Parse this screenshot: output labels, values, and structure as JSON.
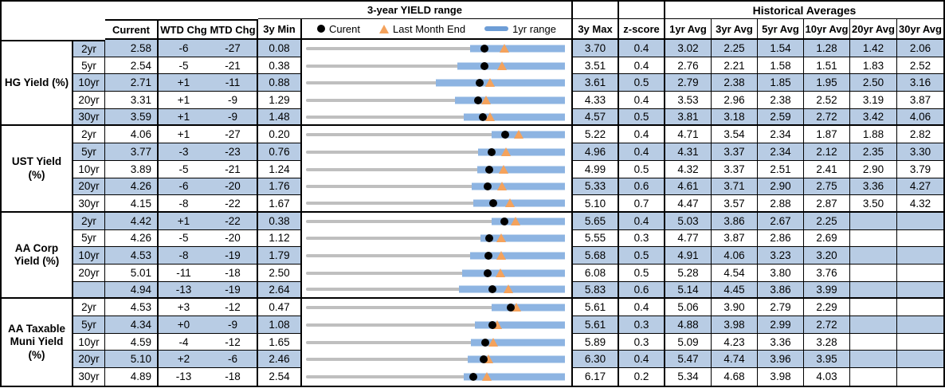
{
  "colors": {
    "row_stripe": "#B8CCE4",
    "range_bar": "#8DB4E2",
    "three_year_line": "#BFBFBF",
    "last_month_marker": "#F4A25C",
    "current_marker": "#000000",
    "legend_bar_swatch": "#6D9DD6",
    "border": "#000000"
  },
  "chart_data": {
    "type": "table",
    "range_header": "3-year YIELD range",
    "historical_header": "Historical Averages",
    "columns": {
      "current": "Current",
      "wtd": "WTD Chg",
      "mtd": "MTD Chg",
      "min": "3y Min",
      "max": "3y Max",
      "z": "z-score",
      "avgs": [
        "1yr Avg",
        "3yr Avg",
        "5yr Avg",
        "10yr Avg",
        "20yr Avg",
        "30yr Avg"
      ]
    },
    "legend": [
      {
        "marker": "dot",
        "label": "Curent"
      },
      {
        "marker": "triangle",
        "label": "Last Month End"
      },
      {
        "marker": "bar",
        "label": "1yr range"
      }
    ],
    "legend_position": "top",
    "groups": [
      {
        "label": "HG Yield (%)",
        "rows": [
          {
            "tenor": "2yr",
            "current": 2.58,
            "wtd": "-6",
            "mtd": "-27",
            "min": 0.08,
            "max": 3.7,
            "z": 0.4,
            "last_month_end": 2.85,
            "range_1yr": [
              2.38,
              3.7
            ],
            "avgs": [
              3.02,
              2.25,
              1.54,
              1.28,
              1.42,
              2.06
            ]
          },
          {
            "tenor": "5yr",
            "current": 2.54,
            "wtd": "-5",
            "mtd": "-21",
            "min": 0.38,
            "max": 3.51,
            "z": 0.4,
            "last_month_end": 2.75,
            "range_1yr": [
              2.21,
              3.51
            ],
            "avgs": [
              2.76,
              2.21,
              1.58,
              1.51,
              1.83,
              2.52
            ]
          },
          {
            "tenor": "10yr",
            "current": 2.71,
            "wtd": "+1",
            "mtd": "-11",
            "min": 0.88,
            "max": 3.61,
            "z": 0.5,
            "last_month_end": 2.82,
            "range_1yr": [
              2.25,
              3.61
            ],
            "avgs": [
              2.79,
              2.38,
              1.85,
              1.95,
              2.5,
              3.16
            ]
          },
          {
            "tenor": "20yr",
            "current": 3.31,
            "wtd": "+1",
            "mtd": "-9",
            "min": 1.29,
            "max": 4.33,
            "z": 0.4,
            "last_month_end": 3.4,
            "range_1yr": [
              3.04,
              4.33
            ],
            "avgs": [
              3.53,
              2.96,
              2.38,
              2.52,
              3.19,
              3.87
            ]
          },
          {
            "tenor": "30yr",
            "current": 3.59,
            "wtd": "+1",
            "mtd": "-9",
            "min": 1.48,
            "max": 4.57,
            "z": 0.5,
            "last_month_end": 3.68,
            "range_1yr": [
              3.36,
              4.57
            ],
            "avgs": [
              3.81,
              3.18,
              2.59,
              2.72,
              3.42,
              4.06
            ]
          }
        ]
      },
      {
        "label": "UST Yield (%)",
        "rows": [
          {
            "tenor": "2yr",
            "current": 4.06,
            "wtd": "+1",
            "mtd": "-27",
            "min": 0.2,
            "max": 5.22,
            "z": 0.4,
            "last_month_end": 4.33,
            "range_1yr": [
              3.8,
              5.22
            ],
            "avgs": [
              4.71,
              3.54,
              2.34,
              1.87,
              1.88,
              2.82
            ]
          },
          {
            "tenor": "5yr",
            "current": 3.77,
            "wtd": "-3",
            "mtd": "-23",
            "min": 0.76,
            "max": 4.96,
            "z": 0.4,
            "last_month_end": 4.0,
            "range_1yr": [
              3.55,
              4.96
            ],
            "avgs": [
              4.31,
              3.37,
              2.34,
              2.12,
              2.35,
              3.3
            ]
          },
          {
            "tenor": "10yr",
            "current": 3.89,
            "wtd": "-5",
            "mtd": "-21",
            "min": 1.24,
            "max": 4.99,
            "z": 0.5,
            "last_month_end": 4.1,
            "range_1yr": [
              3.72,
              4.99
            ],
            "avgs": [
              4.32,
              3.37,
              2.51,
              2.41,
              2.9,
              3.79
            ]
          },
          {
            "tenor": "20yr",
            "current": 4.26,
            "wtd": "-6",
            "mtd": "-20",
            "min": 1.76,
            "max": 5.33,
            "z": 0.6,
            "last_month_end": 4.46,
            "range_1yr": [
              4.04,
              5.33
            ],
            "avgs": [
              4.61,
              3.71,
              2.9,
              2.75,
              3.36,
              4.27
            ]
          },
          {
            "tenor": "30yr",
            "current": 4.15,
            "wtd": "-8",
            "mtd": "-22",
            "min": 1.67,
            "max": 5.1,
            "z": 0.7,
            "last_month_end": 4.37,
            "range_1yr": [
              3.89,
              5.1
            ],
            "avgs": [
              4.47,
              3.57,
              2.88,
              2.87,
              3.5,
              4.32
            ]
          }
        ]
      },
      {
        "label": "AA Corp Yield (%)",
        "rows": [
          {
            "tenor": "2yr",
            "current": 4.42,
            "wtd": "+1",
            "mtd": "-22",
            "min": 0.38,
            "max": 5.65,
            "z": 0.4,
            "last_month_end": 4.64,
            "range_1yr": [
              4.16,
              5.65
            ],
            "avgs": [
              5.03,
              3.86,
              2.67,
              2.25,
              null,
              null
            ]
          },
          {
            "tenor": "5yr",
            "current": 4.26,
            "wtd": "-5",
            "mtd": "-20",
            "min": 1.12,
            "max": 5.55,
            "z": 0.3,
            "last_month_end": 4.46,
            "range_1yr": [
              4.1,
              5.55
            ],
            "avgs": [
              4.77,
              3.87,
              2.86,
              2.69,
              null,
              null
            ]
          },
          {
            "tenor": "10yr",
            "current": 4.53,
            "wtd": "-8",
            "mtd": "-19",
            "min": 1.79,
            "max": 5.68,
            "z": 0.5,
            "last_month_end": 4.72,
            "range_1yr": [
              4.25,
              5.68
            ],
            "avgs": [
              4.91,
              4.06,
              3.23,
              3.2,
              null,
              null
            ]
          },
          {
            "tenor": "20yr",
            "current": 5.01,
            "wtd": "-11",
            "mtd": "-18",
            "min": 2.5,
            "max": 6.08,
            "z": 0.5,
            "last_month_end": 5.19,
            "range_1yr": [
              4.66,
              6.08
            ],
            "avgs": [
              5.28,
              4.54,
              3.8,
              3.76,
              null,
              null
            ]
          },
          {
            "tenor": "",
            "current": 4.94,
            "wtd": "-13",
            "mtd": "-19",
            "min": 2.64,
            "max": 5.83,
            "z": 0.6,
            "last_month_end": 5.13,
            "range_1yr": [
              4.52,
              5.83
            ],
            "avgs": [
              5.14,
              4.45,
              3.86,
              3.99,
              null,
              null
            ]
          }
        ]
      },
      {
        "label": "AA Taxable Muni Yield (%)",
        "rows": [
          {
            "tenor": "2yr",
            "current": 4.53,
            "wtd": "+3",
            "mtd": "-12",
            "min": 0.47,
            "max": 5.61,
            "z": 0.4,
            "last_month_end": 4.65,
            "range_1yr": [
              4.16,
              5.61
            ],
            "avgs": [
              5.06,
              3.9,
              2.79,
              2.29,
              null,
              null
            ]
          },
          {
            "tenor": "5yr",
            "current": 4.34,
            "wtd": "+0",
            "mtd": "-9",
            "min": 1.08,
            "max": 5.61,
            "z": 0.3,
            "last_month_end": 4.43,
            "range_1yr": [
              4.04,
              5.61
            ],
            "avgs": [
              4.88,
              3.98,
              2.99,
              2.72,
              null,
              null
            ]
          },
          {
            "tenor": "10yr",
            "current": 4.59,
            "wtd": "-4",
            "mtd": "-12",
            "min": 1.65,
            "max": 5.89,
            "z": 0.3,
            "last_month_end": 4.71,
            "range_1yr": [
              4.35,
              5.89
            ],
            "avgs": [
              5.09,
              4.23,
              3.36,
              3.28,
              null,
              null
            ]
          },
          {
            "tenor": "20yr",
            "current": 5.1,
            "wtd": "+2",
            "mtd": "-6",
            "min": 2.46,
            "max": 6.3,
            "z": 0.4,
            "last_month_end": 5.16,
            "range_1yr": [
              4.86,
              6.3
            ],
            "avgs": [
              5.47,
              4.74,
              3.96,
              3.95,
              null,
              null
            ]
          },
          {
            "tenor": "30yr",
            "current": 4.89,
            "wtd": "-13",
            "mtd": "-18",
            "min": 2.54,
            "max": 6.17,
            "z": 0.2,
            "last_month_end": 5.07,
            "range_1yr": [
              4.75,
              6.17
            ],
            "avgs": [
              5.34,
              4.68,
              3.98,
              4.03,
              null,
              null
            ]
          }
        ]
      }
    ]
  }
}
